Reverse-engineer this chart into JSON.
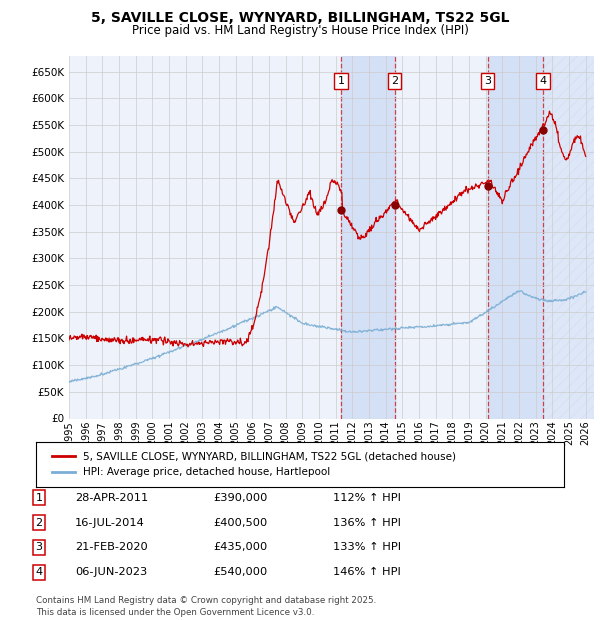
{
  "title": "5, SAVILLE CLOSE, WYNYARD, BILLINGHAM, TS22 5GL",
  "subtitle": "Price paid vs. HM Land Registry's House Price Index (HPI)",
  "ylim": [
    0,
    680000
  ],
  "yticks": [
    0,
    50000,
    100000,
    150000,
    200000,
    250000,
    300000,
    350000,
    400000,
    450000,
    500000,
    550000,
    600000,
    650000
  ],
  "ytick_labels": [
    "£0",
    "£50K",
    "£100K",
    "£150K",
    "£200K",
    "£250K",
    "£300K",
    "£350K",
    "£400K",
    "£450K",
    "£500K",
    "£550K",
    "£600K",
    "£650K"
  ],
  "xlim_start": 1995.0,
  "xlim_end": 2026.5,
  "xtick_years": [
    1995,
    1996,
    1997,
    1998,
    1999,
    2000,
    2001,
    2002,
    2003,
    2004,
    2005,
    2006,
    2007,
    2008,
    2009,
    2010,
    2011,
    2012,
    2013,
    2014,
    2015,
    2016,
    2017,
    2018,
    2019,
    2020,
    2021,
    2022,
    2023,
    2024,
    2025,
    2026
  ],
  "legend_line1": "5, SAVILLE CLOSE, WYNYARD, BILLINGHAM, TS22 5GL (detached house)",
  "legend_line2": "HPI: Average price, detached house, Hartlepool",
  "line1_color": "#cc0000",
  "line2_color": "#7aaed4",
  "transactions": [
    {
      "id": 1,
      "date": "28-APR-2011",
      "year": 2011.32,
      "price": 390000,
      "pct": "112%",
      "dir": "↑"
    },
    {
      "id": 2,
      "date": "16-JUL-2014",
      "year": 2014.54,
      "price": 400500,
      "pct": "136%",
      "dir": "↑"
    },
    {
      "id": 3,
      "date": "21-FEB-2020",
      "year": 2020.13,
      "price": 435000,
      "pct": "133%",
      "dir": "↑"
    },
    {
      "id": 4,
      "date": "06-JUN-2023",
      "year": 2023.43,
      "price": 540000,
      "pct": "146%",
      "dir": "↑"
    }
  ],
  "footer": "Contains HM Land Registry data © Crown copyright and database right 2025.\nThis data is licensed under the Open Government Licence v3.0.",
  "background_color": "#ffffff",
  "plot_bg_color": "#eef2fa",
  "grid_color": "#cccccc",
  "shade_color": "#d0ddf5"
}
